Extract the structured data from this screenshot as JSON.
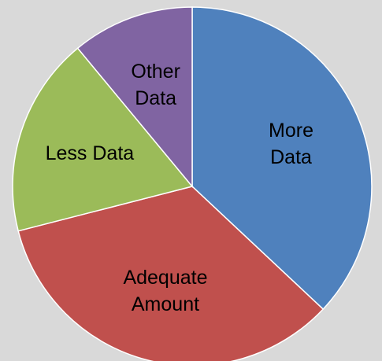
{
  "chart_data": {
    "type": "pie",
    "categories": [
      "More Data",
      "Adequate\nAmount",
      "Less Data",
      "Other\nData"
    ],
    "values": [
      37,
      34,
      18,
      11
    ],
    "colors": [
      "#4f81bd",
      "#c0504d",
      "#9bbb59",
      "#8064a2"
    ]
  }
}
